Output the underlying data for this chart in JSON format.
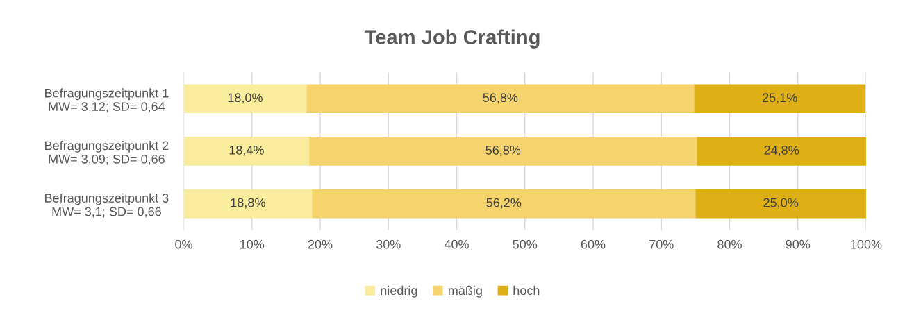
{
  "chart_data": {
    "type": "bar",
    "orientation": "horizontal",
    "stacked": true,
    "title": "Team Job Crafting",
    "categories": [
      "Befragungszeitpunkt 1\nMW= 3,12; SD= 0,64",
      "Befragungszeitpunkt 2\nMW= 3,09; SD= 0,66",
      "Befragungszeitpunkt 3\nMW= 3,1; SD= 0,66"
    ],
    "series": [
      {
        "name": "niedrig",
        "color": "#f9ec9d",
        "values": [
          18.0,
          18.4,
          18.8
        ],
        "value_labels": [
          "18,0%",
          "18,4%",
          "18,8%"
        ]
      },
      {
        "name": "mäßig",
        "color": "#f5d46e",
        "values": [
          56.8,
          56.8,
          56.2
        ],
        "value_labels": [
          "56,8%",
          "56,8%",
          "56,2%"
        ]
      },
      {
        "name": "hoch",
        "color": "#deb015",
        "values": [
          25.1,
          24.8,
          25.0
        ],
        "value_labels": [
          "25,1%",
          "24,8%",
          "25,0%"
        ]
      }
    ],
    "xlim": [
      0,
      100
    ],
    "xticks": [
      {
        "value": 0,
        "label": "0%"
      },
      {
        "value": 10,
        "label": "10%"
      },
      {
        "value": 20,
        "label": "20%"
      },
      {
        "value": 30,
        "label": "30%"
      },
      {
        "value": 40,
        "label": "40%"
      },
      {
        "value": 50,
        "label": "50%"
      },
      {
        "value": 60,
        "label": "60%"
      },
      {
        "value": 70,
        "label": "70%"
      },
      {
        "value": 80,
        "label": "80%"
      },
      {
        "value": 90,
        "label": "90%"
      },
      {
        "value": 100,
        "label": "100%"
      }
    ],
    "grid": "x",
    "legend": "bottom"
  }
}
